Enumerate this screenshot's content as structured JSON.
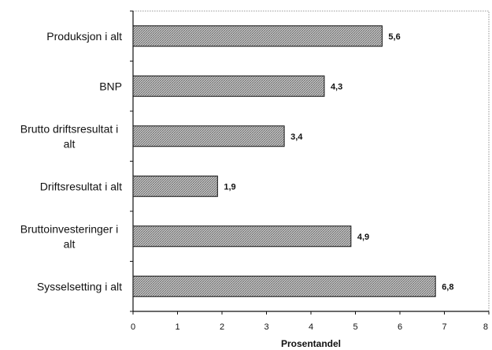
{
  "chart_data": {
    "type": "bar",
    "orientation": "horizontal",
    "categories": [
      [
        "Produksjon i alt"
      ],
      [
        "BNP"
      ],
      [
        "Brutto driftsresultat i",
        "alt"
      ],
      [
        "Driftsresultat i alt"
      ],
      [
        "Bruttoinvesteringer i",
        "alt"
      ],
      [
        "Sysselsetting i alt"
      ]
    ],
    "values": [
      5.6,
      4.3,
      3.4,
      1.9,
      4.9,
      6.8
    ],
    "value_labels": [
      "5,6",
      "4,3",
      "3,4",
      "1,9",
      "4,9",
      "6,8"
    ],
    "xlabel": "Prosentandel",
    "xlim": [
      0,
      8
    ],
    "xticks": [
      "0",
      "1",
      "2",
      "3",
      "4",
      "5",
      "6",
      "7",
      "8"
    ],
    "grid": false,
    "bar_pattern": "crosshatch"
  }
}
